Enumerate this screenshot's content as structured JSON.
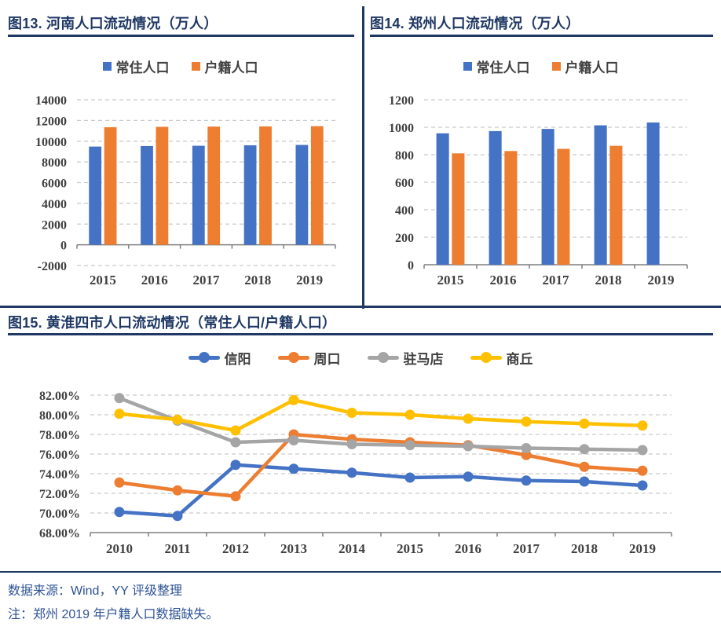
{
  "theme": {
    "navy": "#1F3864",
    "footer-blue": "#2E5395"
  },
  "chart_data": [
    {
      "id": "fig13",
      "type": "bar",
      "title": "图13. 河南人口流动情况（万人）",
      "categories": [
        "2015",
        "2016",
        "2017",
        "2018",
        "2019"
      ],
      "series": [
        {
          "name": "常住人口",
          "color": "#4472C4",
          "values": [
            9480,
            9532,
            9559,
            9605,
            9640
          ]
        },
        {
          "name": "户籍人口",
          "color": "#ED7D31",
          "values": [
            11350,
            11390,
            11410,
            11430,
            11450
          ]
        }
      ],
      "ylim": [
        -2000,
        14000
      ],
      "ytick": 2000,
      "grid": true,
      "legend_position": "top"
    },
    {
      "id": "fig14",
      "type": "bar",
      "title": "图14. 郑州人口流动情况（万人）",
      "categories": [
        "2015",
        "2016",
        "2017",
        "2018",
        "2019"
      ],
      "series": [
        {
          "name": "常住人口",
          "color": "#4472C4",
          "values": [
            956,
            972,
            988,
            1014,
            1035
          ]
        },
        {
          "name": "户籍人口",
          "color": "#ED7D31",
          "values": [
            810,
            827,
            843,
            865,
            null
          ]
        }
      ],
      "ylim": [
        0,
        1200
      ],
      "ytick": 200,
      "grid": true,
      "legend_position": "top"
    },
    {
      "id": "fig15",
      "type": "line",
      "title": "图15. 黄淮四市人口流动情况（常住人口/户籍人口）",
      "categories": [
        "2010",
        "2011",
        "2012",
        "2013",
        "2014",
        "2015",
        "2016",
        "2017",
        "2018",
        "2019"
      ],
      "series": [
        {
          "name": "信阳",
          "color": "#4472C4",
          "values": [
            70.1,
            69.7,
            74.9,
            74.5,
            74.1,
            73.6,
            73.7,
            73.3,
            73.2,
            72.8
          ]
        },
        {
          "name": "周口",
          "color": "#ED7D31",
          "values": [
            73.1,
            72.3,
            71.7,
            78.0,
            77.5,
            77.2,
            76.9,
            75.9,
            74.7,
            74.3
          ]
        },
        {
          "name": "驻马店",
          "color": "#A5A5A5",
          "values": [
            81.7,
            79.4,
            77.2,
            77.4,
            77.0,
            76.9,
            76.8,
            76.6,
            76.5,
            76.4
          ]
        },
        {
          "name": "商丘",
          "color": "#FFC000",
          "values": [
            80.1,
            79.5,
            78.4,
            81.5,
            80.2,
            80.0,
            79.6,
            79.3,
            79.1,
            78.9
          ]
        }
      ],
      "ylim": [
        68,
        82
      ],
      "ytick": 2,
      "ytick_format": "percent2",
      "grid": true,
      "legend_position": "top"
    }
  ],
  "footer": {
    "source": "数据来源：Wind，YY 评级整理",
    "note": "注：郑州 2019 年户籍人口数据缺失。"
  }
}
